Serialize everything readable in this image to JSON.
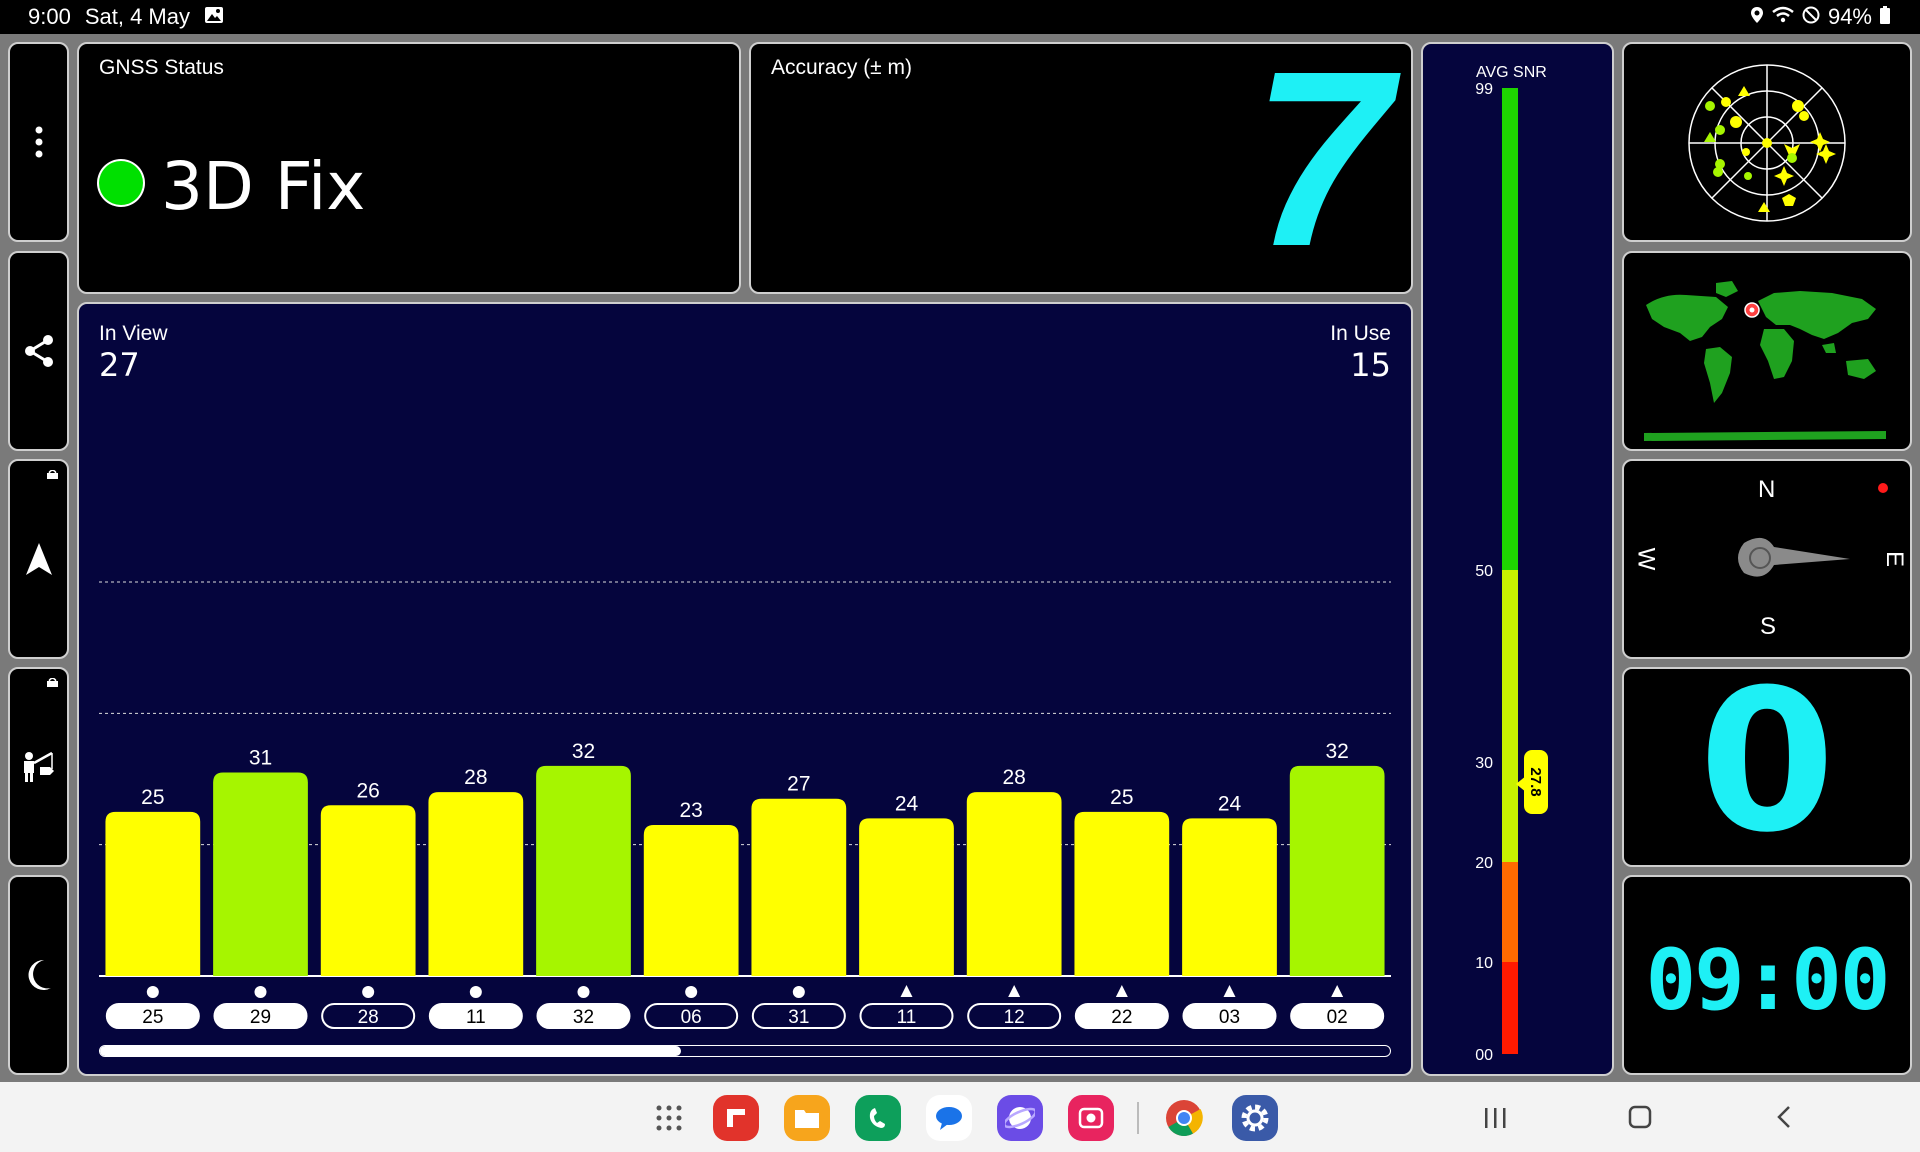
{
  "status_bar": {
    "time": "9:00",
    "date": "Sat, 4 May",
    "battery": "94%",
    "icons": [
      "gallery-icon",
      "location-icon",
      "wifi-icon",
      "do-not-disturb-icon",
      "battery-icon"
    ]
  },
  "sidebar": {
    "items": [
      {
        "name": "more-menu",
        "icon": "dots-vertical-icon"
      },
      {
        "name": "share",
        "icon": "share-icon"
      },
      {
        "name": "navigate",
        "icon": "navigation-arrow-icon",
        "locked": true
      },
      {
        "name": "fishing-hunting",
        "icon": "fishing-icon",
        "locked": true
      },
      {
        "name": "night-mode",
        "icon": "moon-icon"
      }
    ]
  },
  "gnss": {
    "title": "GNSS Status",
    "fix": "3D Fix",
    "fix_color": "#00e000"
  },
  "accuracy": {
    "title": "Accuracy (± m)",
    "value": "7",
    "color": "#1ef0f5"
  },
  "satellites": {
    "in_view_label": "In View",
    "in_view": "27",
    "in_use_label": "In Use",
    "in_use": "15",
    "scroll_fraction": 0.45
  },
  "chart_data": {
    "type": "bar",
    "categories": [
      "25",
      "29",
      "28",
      "11",
      "32",
      "06",
      "31",
      "11",
      "12",
      "22",
      "03",
      "02"
    ],
    "values": [
      25,
      31,
      26,
      28,
      32,
      23,
      27,
      24,
      28,
      25,
      24,
      32
    ],
    "value_labels": [
      "25",
      "31",
      "26",
      "28",
      "32",
      "23",
      "27",
      "24",
      "28",
      "25",
      "24",
      "32"
    ],
    "markers": [
      "circle",
      "circle",
      "circle",
      "circle",
      "circle",
      "circle",
      "circle",
      "triangle",
      "triangle",
      "triangle",
      "triangle",
      "triangle"
    ],
    "in_use": [
      true,
      true,
      false,
      true,
      true,
      false,
      false,
      false,
      false,
      true,
      true,
      true
    ],
    "colors": [
      "#ffff00",
      "#a6f500",
      "#ffff00",
      "#ffff00",
      "#a6f500",
      "#ffff00",
      "#ffff00",
      "#ffff00",
      "#ffff00",
      "#ffff00",
      "#ffff00",
      "#a6f500"
    ],
    "ylim": [
      0,
      99
    ],
    "grid_values": [
      60,
      40,
      20
    ]
  },
  "snr": {
    "title": "AVG SNR",
    "ticks": [
      "99",
      "50",
      "30",
      "20",
      "10",
      "00"
    ],
    "avg": "27.8",
    "avg_value": 27.8,
    "segments": [
      {
        "from": 0,
        "to": 10,
        "color": "#ff1a00"
      },
      {
        "from": 10,
        "to": 20,
        "color": "#ff6a00"
      },
      {
        "from": 20,
        "to": 50,
        "color": "#c8f000"
      },
      {
        "from": 50,
        "to": 99,
        "color": "#1ed400"
      }
    ]
  },
  "compass": {
    "n": "N",
    "e": "E",
    "s": "S",
    "w": "W"
  },
  "speed": {
    "value": "0",
    "color": "#1ef0f5"
  },
  "clock": {
    "value": "09:00",
    "color": "#1ef0f5"
  },
  "dock": {
    "apps": [
      "apps-grid-icon",
      "flipboard-icon",
      "my-files-icon",
      "phone-icon",
      "messages-icon",
      "internet-icon",
      "screen-recorder-icon",
      "chrome-icon",
      "settings-icon"
    ],
    "nav": [
      "recents-icon",
      "home-icon",
      "back-icon"
    ]
  }
}
